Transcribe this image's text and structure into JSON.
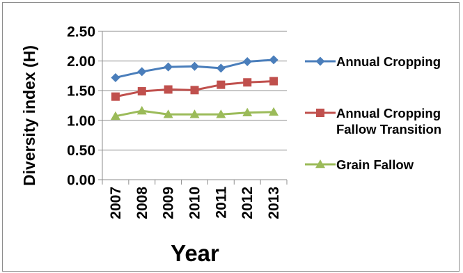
{
  "chart_data": {
    "type": "line",
    "title": "",
    "xlabel": "Year",
    "ylabel": "Diversity index (H)",
    "categories": [
      "2007",
      "2008",
      "2009",
      "2010",
      "2011",
      "2012",
      "2013"
    ],
    "ylim": [
      0,
      2.5
    ],
    "yticks": [
      "0.00",
      "0.50",
      "1.00",
      "1.50",
      "2.00",
      "2.50"
    ],
    "grid": true,
    "legend_position": "right",
    "series": [
      {
        "name": "Annual Cropping",
        "values": [
          1.72,
          1.82,
          1.9,
          1.91,
          1.88,
          1.99,
          2.02
        ],
        "color": "#4a7ebb",
        "marker": "diamond"
      },
      {
        "name": "Annual Cropping Fallow Transition",
        "name_lines": [
          "Annual Cropping",
          "Fallow Transition"
        ],
        "values": [
          1.4,
          1.49,
          1.52,
          1.51,
          1.6,
          1.64,
          1.66
        ],
        "color": "#c0504d",
        "marker": "square"
      },
      {
        "name": "Grain Fallow",
        "values": [
          1.07,
          1.16,
          1.1,
          1.1,
          1.1,
          1.13,
          1.14
        ],
        "color": "#9bbb59",
        "marker": "triangle"
      }
    ]
  }
}
